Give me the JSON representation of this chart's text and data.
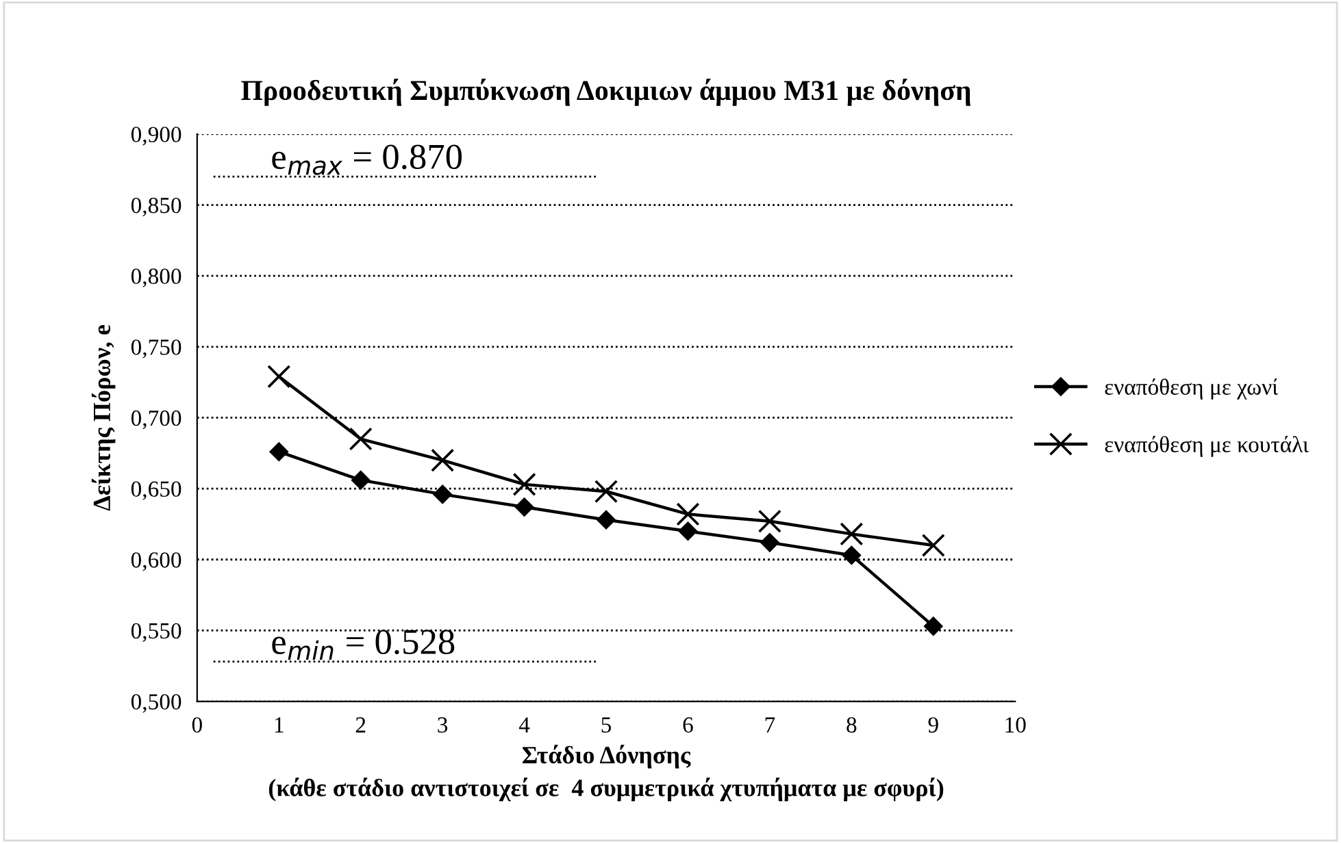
{
  "chart_data": {
    "type": "line",
    "title": "Προοδευτική Συμπύκνωση Δοκιμιων άμμου Μ31 με δόνηση",
    "xlabel": "Στάδιο Δόνησης\n(κάθε στάδιο αντιστοιχεί σε  4 συμμετρικά χτυπήματα με σφυρί)",
    "ylabel": "Δείκτης Πόρων, e",
    "x": [
      1,
      2,
      3,
      4,
      5,
      6,
      7,
      8,
      9
    ],
    "series": [
      {
        "name": "εναπόθεση με χωνί",
        "color": "#000000",
        "marker": "diamond",
        "values": [
          0.676,
          0.656,
          0.646,
          0.637,
          0.628,
          0.62,
          0.612,
          0.603,
          0.553
        ]
      },
      {
        "name": "εναπόθεση με κουτάλι",
        "color": "#000000",
        "marker": "cross",
        "values": [
          0.729,
          0.685,
          0.67,
          0.653,
          0.648,
          0.632,
          0.627,
          0.618,
          0.61
        ]
      }
    ],
    "xlim": [
      0,
      10
    ],
    "xticks": [
      0,
      1,
      2,
      3,
      4,
      5,
      6,
      7,
      8,
      9,
      10
    ],
    "ylim": [
      0.5,
      0.9
    ],
    "yticks": [
      {
        "value": 0.5,
        "label": "0,500"
      },
      {
        "value": 0.55,
        "label": "0,550"
      },
      {
        "value": 0.6,
        "label": "0,600"
      },
      {
        "value": 0.65,
        "label": "0,650"
      },
      {
        "value": 0.7,
        "label": "0,700"
      },
      {
        "value": 0.75,
        "label": "0,750"
      },
      {
        "value": 0.8,
        "label": "0,800"
      },
      {
        "value": 0.85,
        "label": "0,850"
      },
      {
        "value": 0.9,
        "label": "0,900"
      }
    ],
    "ref_lines": [
      {
        "axis": "y",
        "value": 0.87,
        "label": "e$_{max}$ = 0.870",
        "color": "#000000",
        "line_style": "dotted"
      },
      {
        "axis": "y",
        "value": 0.528,
        "label": "e$_{min}$ = 0.528",
        "color": "#000000",
        "line_style": "dotted"
      }
    ],
    "grid": "y",
    "legend": "right",
    "line_style": "solid"
  }
}
